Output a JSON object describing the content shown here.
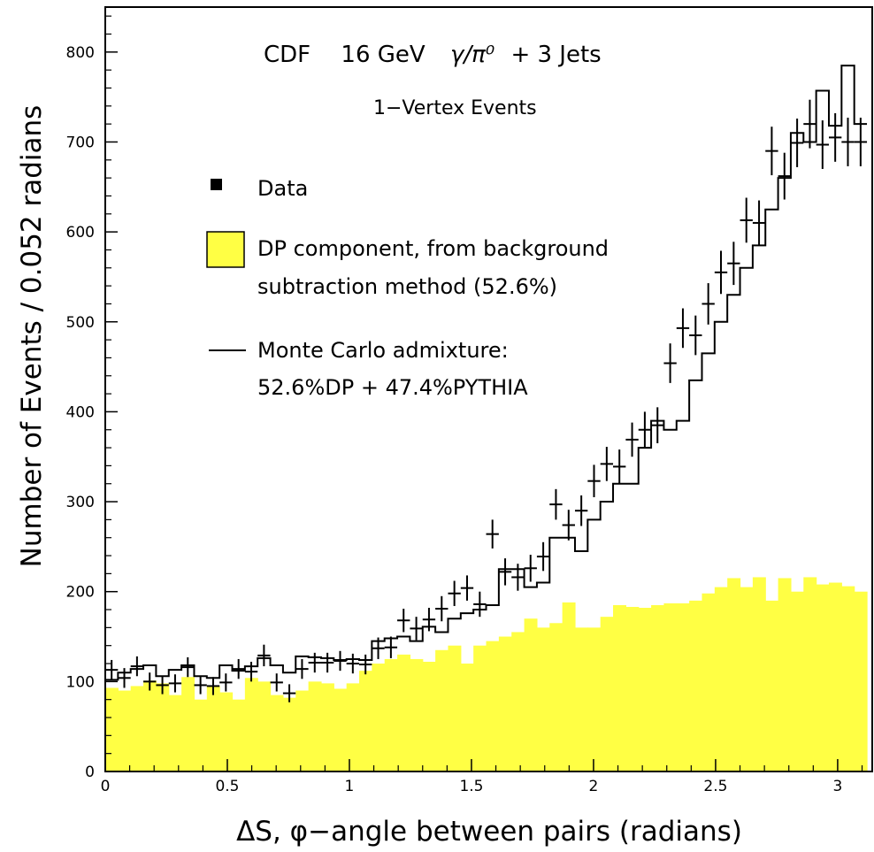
{
  "chart_data": {
    "type": "histogram",
    "title_parts": {
      "experiment": "CDF",
      "energy": "16 GeV",
      "process_symbol": "γ/π⁰",
      "process_rest": "+ 3 Jets"
    },
    "subtitle": "1−Vertex Events",
    "xlabel": "ΔS, φ−angle between pairs (radians)",
    "ylabel": "Number of Events / 0.052 radians",
    "xlim": [
      0,
      3.1416
    ],
    "ylim": [
      0,
      850
    ],
    "x_ticks": [
      0,
      0.5,
      1,
      1.5,
      2,
      2.5,
      3
    ],
    "x_tick_labels": [
      "0",
      "0.5",
      "1",
      "1.5",
      "2",
      "2.5",
      "3"
    ],
    "y_ticks": [
      0,
      100,
      200,
      300,
      400,
      500,
      600,
      700,
      800
    ],
    "y_tick_labels": [
      "0",
      "100",
      "200",
      "300",
      "400",
      "500",
      "600",
      "700",
      "800"
    ],
    "bin_width": 0.052,
    "legend": {
      "position": "upper-left",
      "entries": [
        {
          "marker": "square",
          "lines": [
            "Data"
          ]
        },
        {
          "marker": "filled-box",
          "lines": [
            "DP component, from background",
            "subtraction method (52.6%)"
          ]
        },
        {
          "marker": "line",
          "lines": [
            "Monte Carlo admixture:",
            "52.6%DP + 47.4%PYTHIA"
          ]
        }
      ]
    },
    "series": [
      {
        "name": "Data",
        "style": "points-with-errors",
        "color": "#000000",
        "x": [
          0.026,
          0.078,
          0.13,
          0.182,
          0.234,
          0.286,
          0.338,
          0.39,
          0.442,
          0.494,
          0.546,
          0.598,
          0.65,
          0.702,
          0.754,
          0.806,
          0.858,
          0.91,
          0.962,
          1.014,
          1.066,
          1.118,
          1.17,
          1.222,
          1.274,
          1.326,
          1.378,
          1.43,
          1.482,
          1.534,
          1.586,
          1.638,
          1.69,
          1.742,
          1.794,
          1.846,
          1.898,
          1.95,
          2.002,
          2.054,
          2.106,
          2.158,
          2.21,
          2.262,
          2.314,
          2.366,
          2.418,
          2.47,
          2.522,
          2.574,
          2.626,
          2.678,
          2.73,
          2.782,
          2.834,
          2.886,
          2.938,
          2.99,
          3.042,
          3.094
        ],
        "y": [
          113,
          104,
          117,
          100,
          96,
          98,
          116,
          96,
          95,
          99,
          114,
          111,
          129,
          99,
          87,
          114,
          121,
          121,
          123,
          120,
          119,
          137,
          138,
          168,
          159,
          169,
          181,
          198,
          204,
          186,
          264,
          222,
          216,
          226,
          239,
          297,
          274,
          290,
          323,
          342,
          339,
          369,
          380,
          385,
          454,
          493,
          485,
          520,
          555,
          565,
          613,
          610,
          690,
          662,
          699,
          720,
          697,
          705,
          700,
          700
        ],
        "err": [
          11,
          11,
          11,
          10,
          10,
          10,
          11,
          10,
          10,
          10,
          11,
          11,
          12,
          10,
          10,
          11,
          11,
          11,
          11,
          11,
          11,
          12,
          12,
          13,
          13,
          13,
          14,
          14,
          14,
          14,
          16,
          15,
          15,
          15,
          16,
          17,
          17,
          17,
          18,
          19,
          19,
          19,
          20,
          20,
          22,
          22,
          22,
          23,
          24,
          24,
          25,
          25,
          27,
          26,
          27,
          27,
          27,
          27,
          27,
          27
        ]
      },
      {
        "name": "Monte Carlo admixture: 52.6%DP + 47.4%PYTHIA",
        "style": "step",
        "color": "#000000",
        "values": [
          102,
          110,
          114,
          118,
          106,
          113,
          118,
          106,
          104,
          118,
          112,
          117,
          126,
          118,
          110,
          128,
          127,
          126,
          124,
          125,
          124,
          145,
          148,
          150,
          145,
          161,
          155,
          170,
          176,
          180,
          185,
          225,
          225,
          205,
          210,
          260,
          260,
          245,
          280,
          300,
          320,
          320,
          360,
          390,
          380,
          390,
          435,
          465,
          500,
          530,
          560,
          585,
          625,
          660,
          710,
          700,
          757,
          718,
          785,
          720
        ]
      },
      {
        "name": "DP component, from background subtraction method (52.6%)",
        "style": "filled-histogram",
        "color": "#ffff44",
        "values": [
          93,
          90,
          95,
          101,
          98,
          85,
          105,
          80,
          95,
          88,
          80,
          104,
          100,
          85,
          82,
          90,
          100,
          98,
          92,
          98,
          112,
          120,
          125,
          130,
          125,
          122,
          135,
          140,
          120,
          140,
          145,
          150,
          155,
          170,
          160,
          165,
          188,
          160,
          160,
          172,
          185,
          183,
          182,
          185,
          187,
          187,
          190,
          198,
          205,
          215,
          205,
          216,
          190,
          215,
          200,
          216,
          208,
          210,
          206,
          200
        ]
      }
    ]
  }
}
